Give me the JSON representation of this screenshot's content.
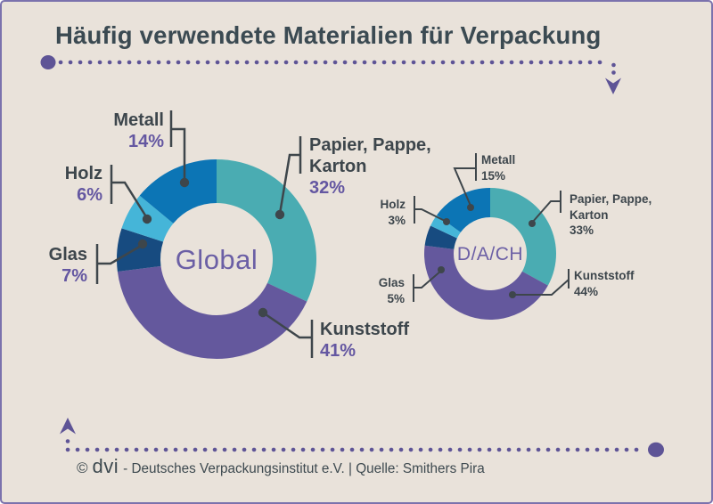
{
  "title": "Häufig verwendete Materialien für Verpackung",
  "footer": {
    "copyright": "©",
    "brand": "dvi",
    "credit": "- Deutsches Verpackungsinstitut e.V. | Quelle: Smithers Pira"
  },
  "colors": {
    "background": "#e9e2da",
    "border": "#7b72ad",
    "accent_purple": "#5e5496",
    "label_dark": "#3d464c",
    "percent_purple": "#6457a1",
    "center_label_purple": "#6b5fa5",
    "leader_line": "#3e464b"
  },
  "chart_data": [
    {
      "type": "pie",
      "subtype": "donut",
      "center_label": "Global",
      "labels": [
        "Papier, Pappe, Karton",
        "Kunststoff",
        "Glas",
        "Holz",
        "Metall"
      ],
      "values": [
        32,
        41,
        7,
        6,
        14
      ],
      "colors": [
        "#4aacb2",
        "#64589d",
        "#174b80",
        "#45b5d8",
        "#0c75b5"
      ],
      "callouts": [
        {
          "name_lines": [
            "Papier, Pappe,",
            "Karton"
          ],
          "pct": "32%"
        },
        {
          "name_lines": [
            "Kunststoff"
          ],
          "pct": "41%"
        },
        {
          "name_lines": [
            "Glas"
          ],
          "pct": "7%"
        },
        {
          "name_lines": [
            "Holz"
          ],
          "pct": "6%"
        },
        {
          "name_lines": [
            "Metall"
          ],
          "pct": "14%"
        }
      ]
    },
    {
      "type": "pie",
      "subtype": "donut",
      "center_label": "D/A/CH",
      "labels": [
        "Papier, Pappe, Karton",
        "Kunststoff",
        "Glas",
        "Holz",
        "Metall"
      ],
      "values": [
        33,
        44,
        5,
        3,
        15
      ],
      "colors": [
        "#4aacb2",
        "#64589d",
        "#174b80",
        "#45b5d8",
        "#0c75b5"
      ],
      "callouts": [
        {
          "name_lines": [
            "Papier, Pappe,",
            "Karton"
          ],
          "pct": "33%"
        },
        {
          "name_lines": [
            "Kunststoff"
          ],
          "pct": "44%"
        },
        {
          "name_lines": [
            "Glas"
          ],
          "pct": "5%"
        },
        {
          "name_lines": [
            "Holz"
          ],
          "pct": "3%"
        },
        {
          "name_lines": [
            "Metall"
          ],
          "pct": "15%"
        }
      ]
    }
  ]
}
